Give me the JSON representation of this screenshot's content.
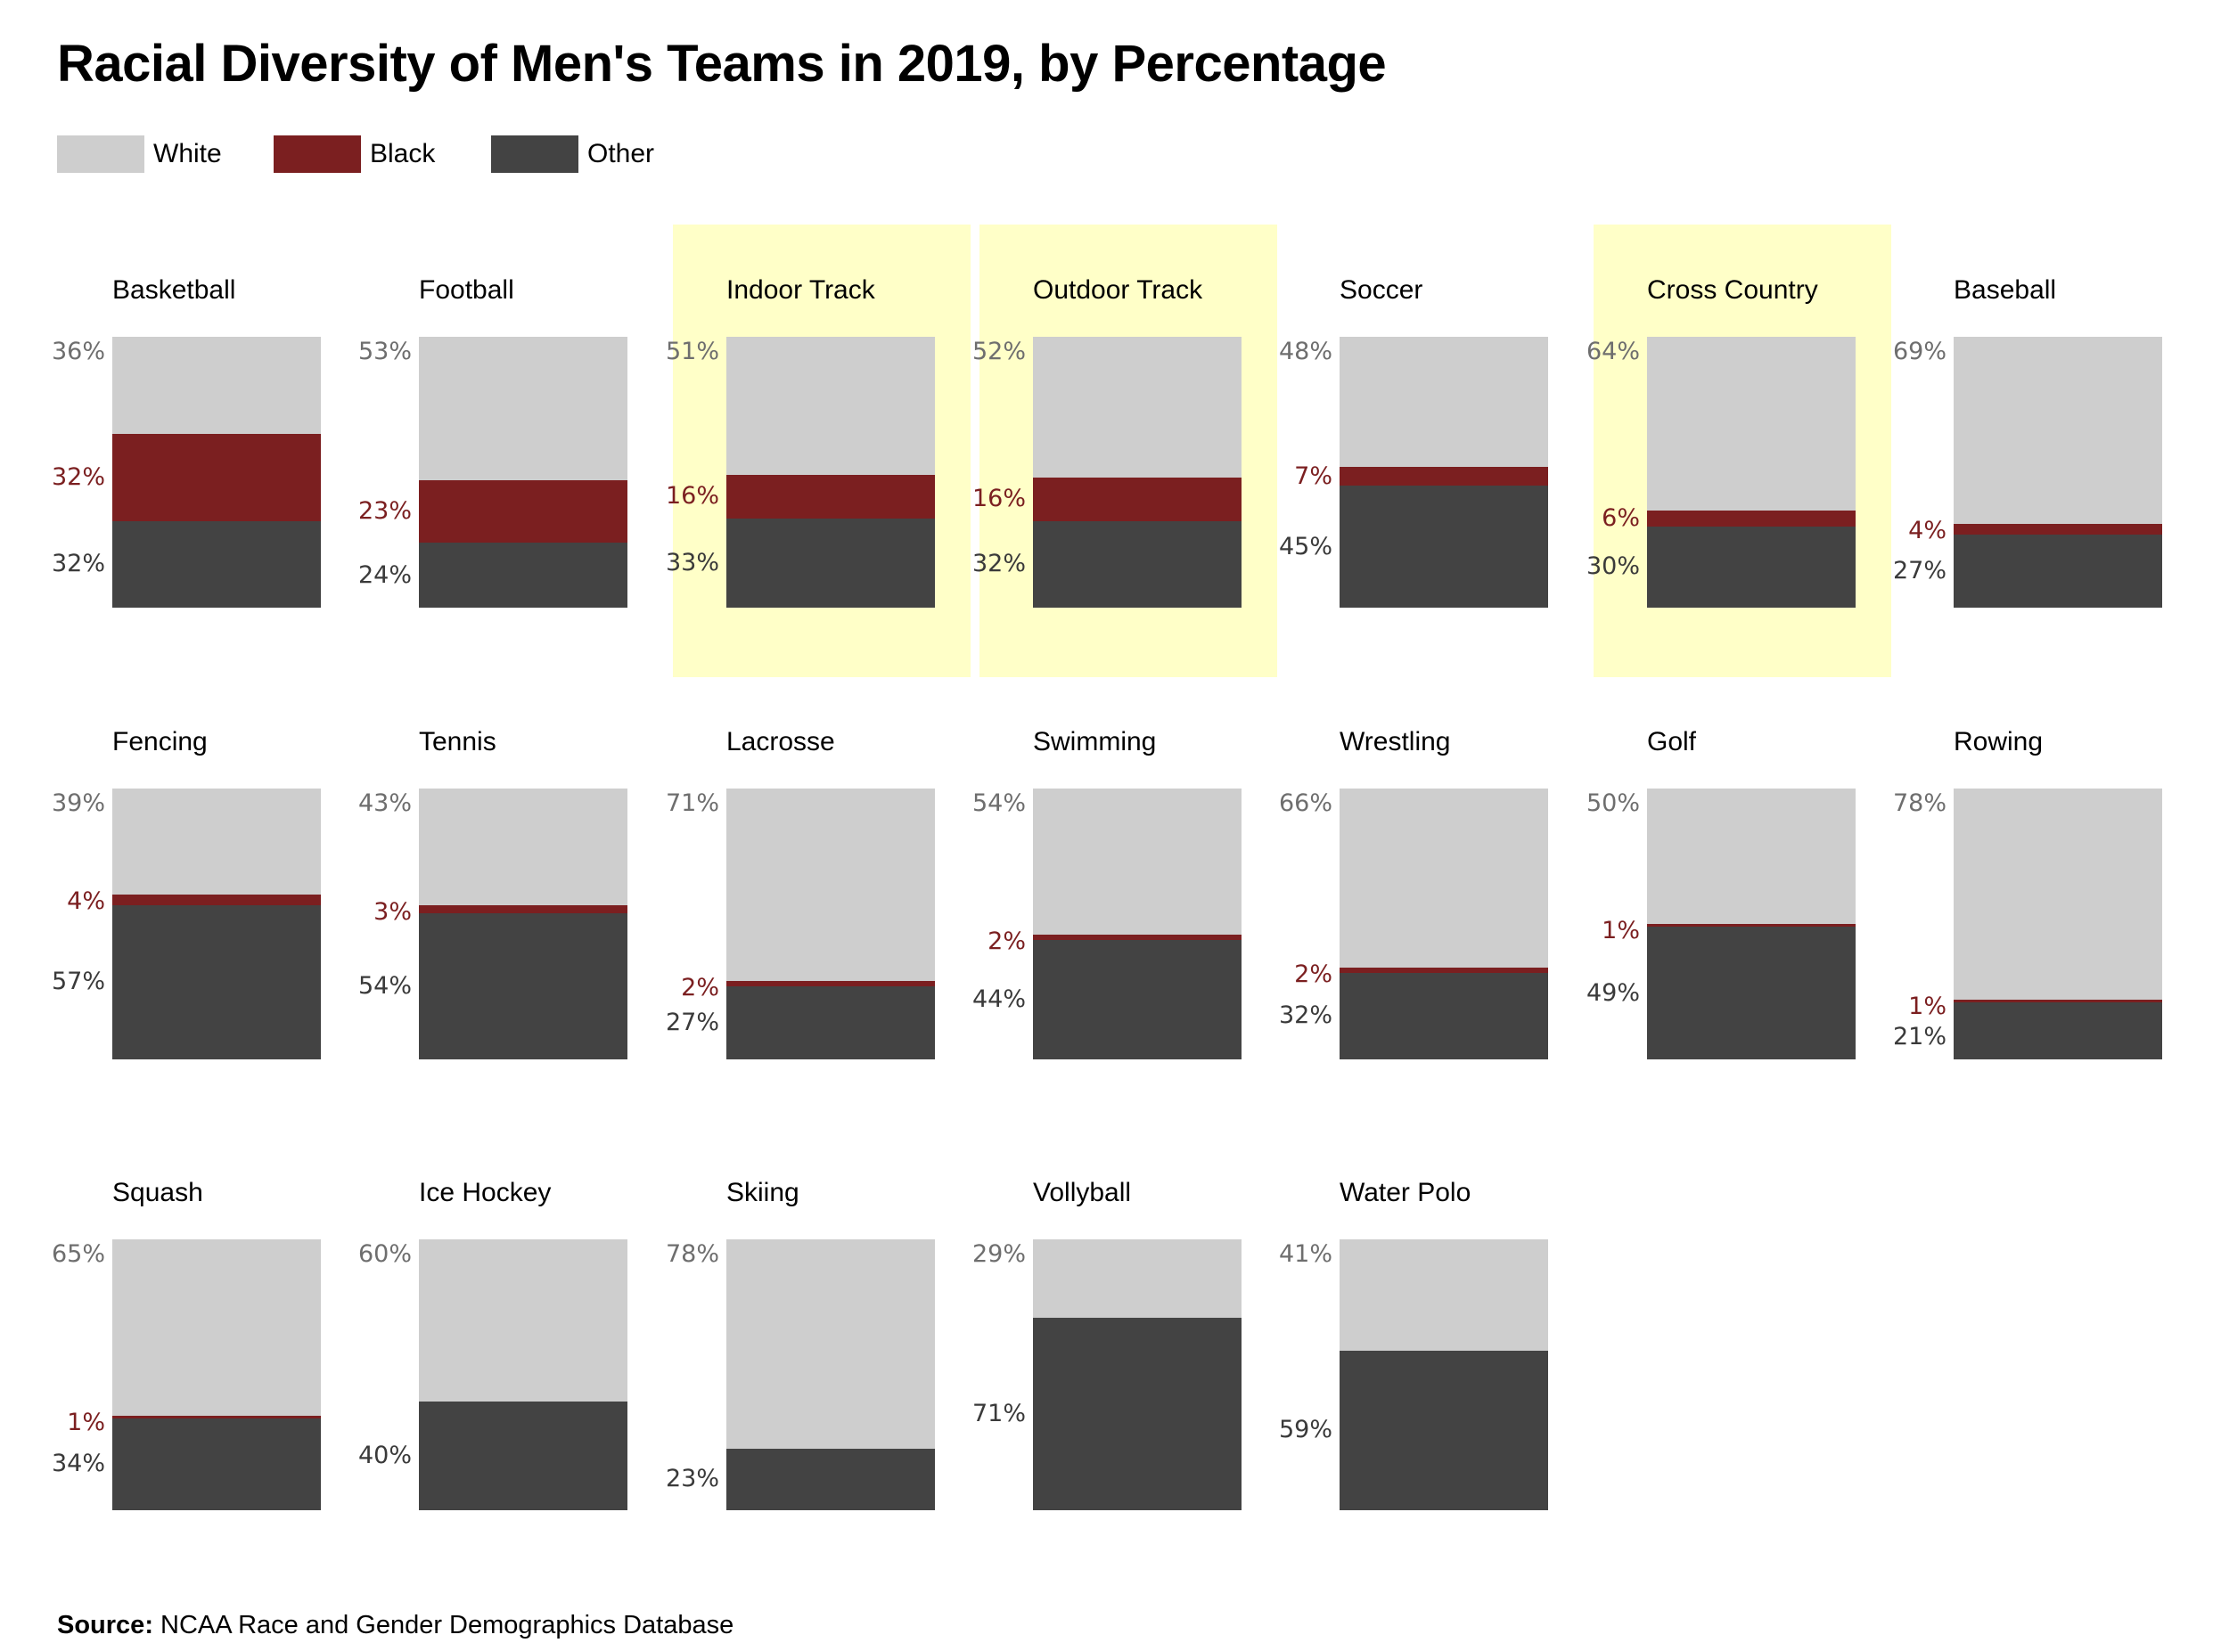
{
  "title": "Racial Diversity of Men's Teams in 2019, by Percentage",
  "source": {
    "label": "Source:",
    "text": "NCAA Race and Gender Demographics Database"
  },
  "colors": {
    "white": "#cecece",
    "black": "#7b1f20",
    "other": "#434343",
    "highlight": "#ffffc8",
    "white_text": "#6e6e6e",
    "black_text": "#7b1f20",
    "other_text": "#3a3a3a"
  },
  "legend": [
    {
      "key": "white",
      "label": "White"
    },
    {
      "key": "black",
      "label": "Black"
    },
    {
      "key": "other",
      "label": "Other"
    }
  ],
  "chart_data": {
    "type": "bar",
    "stacked": true,
    "small_multiples": true,
    "title": "Racial Diversity of Men's Teams in 2019, by Percentage",
    "series": [
      {
        "name": "White",
        "key": "white"
      },
      {
        "name": "Black",
        "key": "black"
      },
      {
        "name": "Other",
        "key": "other"
      }
    ],
    "panels": [
      {
        "sport": "Basketball",
        "white": 36,
        "black": 32,
        "other": 32,
        "highlight": false
      },
      {
        "sport": "Football",
        "white": 53,
        "black": 23,
        "other": 24,
        "highlight": false
      },
      {
        "sport": "Indoor Track",
        "white": 51,
        "black": 16,
        "other": 33,
        "highlight": true
      },
      {
        "sport": "Outdoor Track",
        "white": 52,
        "black": 16,
        "other": 32,
        "highlight": true
      },
      {
        "sport": "Soccer",
        "white": 48,
        "black": 7,
        "other": 45,
        "highlight": false
      },
      {
        "sport": "Cross Country",
        "white": 64,
        "black": 6,
        "other": 30,
        "highlight": true
      },
      {
        "sport": "Baseball",
        "white": 69,
        "black": 4,
        "other": 27,
        "highlight": false
      },
      {
        "sport": "Fencing",
        "white": 39,
        "black": 4,
        "other": 57,
        "highlight": false
      },
      {
        "sport": "Tennis",
        "white": 43,
        "black": 3,
        "other": 54,
        "highlight": false
      },
      {
        "sport": "Lacrosse",
        "white": 71,
        "black": 2,
        "other": 27,
        "highlight": false
      },
      {
        "sport": "Swimming",
        "white": 54,
        "black": 2,
        "other": 44,
        "highlight": false
      },
      {
        "sport": "Wrestling",
        "white": 66,
        "black": 2,
        "other": 32,
        "highlight": false
      },
      {
        "sport": "Golf",
        "white": 50,
        "black": 1,
        "other": 49,
        "highlight": false
      },
      {
        "sport": "Rowing",
        "white": 78,
        "black": 1,
        "other": 21,
        "highlight": false
      },
      {
        "sport": "Squash",
        "white": 65,
        "black": 1,
        "other": 34,
        "highlight": false
      },
      {
        "sport": "Ice Hockey",
        "white": 60,
        "black": null,
        "other": 40,
        "highlight": false
      },
      {
        "sport": "Skiing",
        "white": 78,
        "black": null,
        "other": 23,
        "highlight": false
      },
      {
        "sport": "Vollyball",
        "white": 29,
        "black": null,
        "other": 71,
        "highlight": false
      },
      {
        "sport": "Water Polo",
        "white": 41,
        "black": null,
        "other": 59,
        "highlight": false
      }
    ]
  }
}
